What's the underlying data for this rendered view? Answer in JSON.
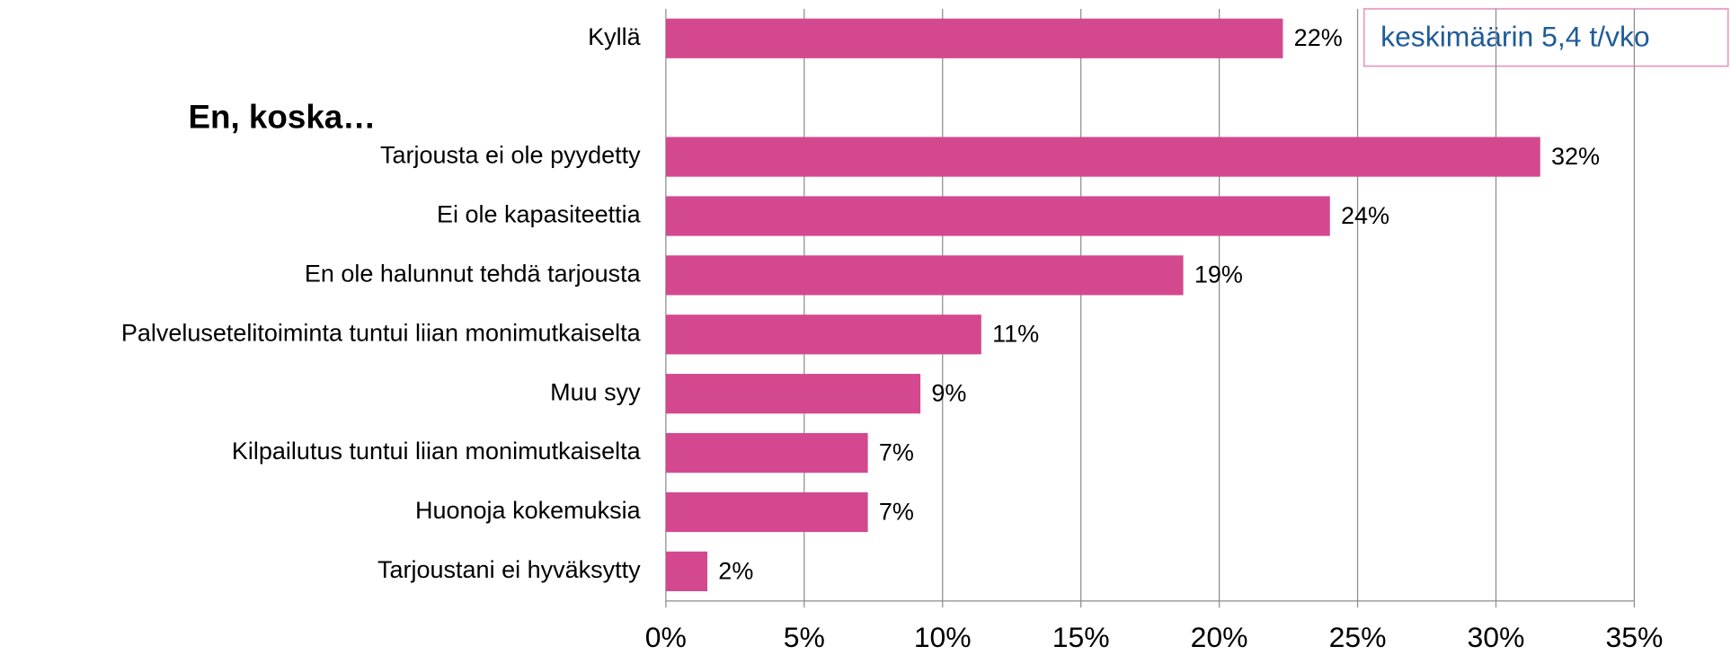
{
  "chart_data": {
    "type": "barh",
    "categories": [
      "Kyllä",
      null,
      "Tarjousta ei ole pyydetty",
      "Ei ole kapasiteettia",
      "En ole halunnut tehdä tarjousta",
      "Palvelusetelitoiminta tuntui liian monimutkaiselta",
      "Muu syy",
      "Kilpailutus tuntui liian monimutkaiselta",
      "Huonoja kokemuksia",
      "Tarjoustani ei hyväksytty"
    ],
    "values": [
      22.3,
      null,
      31.6,
      24.0,
      18.7,
      11.4,
      9.2,
      7.3,
      7.3,
      1.5
    ],
    "value_labels": [
      "22%",
      null,
      "32%",
      "24%",
      "19%",
      "11%",
      "9%",
      "7%",
      "7%",
      "2%"
    ],
    "color": "#d4488f",
    "group_label": "En, koska…",
    "annotation": "keskimäärin 5,4 t/vko",
    "xlim": [
      0,
      35
    ],
    "xticks": [
      {
        "value": 0,
        "label": "0%"
      },
      {
        "value": 5,
        "label": "5%"
      },
      {
        "value": 10,
        "label": "10%"
      },
      {
        "value": 15,
        "label": "15%"
      },
      {
        "value": 20,
        "label": "20%"
      },
      {
        "value": 25,
        "label": "25%"
      },
      {
        "value": 30,
        "label": "30%"
      },
      {
        "value": 35,
        "label": "35%"
      }
    ],
    "grid": true
  }
}
